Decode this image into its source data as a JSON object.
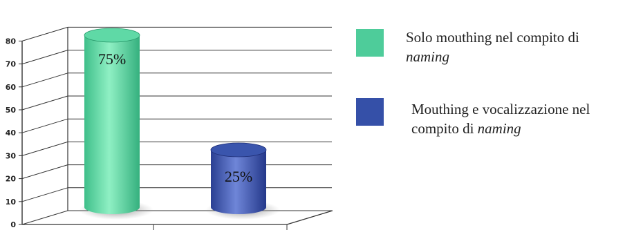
{
  "chart_data": {
    "type": "bar",
    "categories": [
      "",
      ""
    ],
    "values": [
      75,
      25
    ],
    "data_labels": [
      "75%",
      "25%"
    ],
    "ylim": [
      0,
      80
    ],
    "yticks": [
      0,
      10,
      20,
      30,
      40,
      50,
      60,
      70,
      80
    ],
    "grid": true,
    "legend_placement": "right",
    "colors": [
      "#4ecc9a",
      "#3550a8"
    ],
    "legend": [
      {
        "line1": "Solo mouthing nel compito di",
        "line2_plain": "",
        "line2_italic": "naming"
      },
      {
        "line1": "Mouthing e vocalizzazione nel",
        "line2_plain": "compito di ",
        "line2_italic": "naming"
      }
    ]
  }
}
